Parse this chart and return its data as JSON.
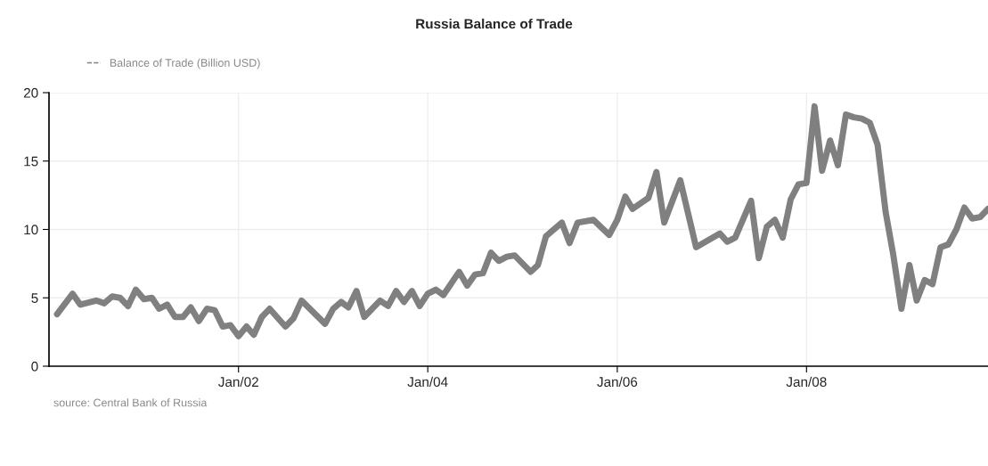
{
  "chart_data": {
    "type": "line",
    "title": "Russia Balance of Trade",
    "x": [
      "2000-02",
      "2000-04",
      "2000-05",
      "2000-07",
      "2000-08",
      "2000-09",
      "2000-10",
      "2000-11",
      "2000-12",
      "2001-01",
      "2001-02",
      "2001-03",
      "2001-04",
      "2001-05",
      "2001-06",
      "2001-07",
      "2001-08",
      "2001-09",
      "2001-10",
      "2001-11",
      "2001-12",
      "2002-01",
      "2002-02",
      "2002-03",
      "2002-04",
      "2002-05",
      "2002-07",
      "2002-08",
      "2002-09",
      "2002-12",
      "2003-01",
      "2003-02",
      "2003-03",
      "2003-04",
      "2003-05",
      "2003-07",
      "2003-08",
      "2003-09",
      "2003-10",
      "2003-11",
      "2003-12",
      "2004-01",
      "2004-02",
      "2004-03",
      "2004-05",
      "2004-06",
      "2004-07",
      "2004-08",
      "2004-09",
      "2004-10",
      "2004-11",
      "2004-12",
      "2005-02",
      "2005-03",
      "2005-04",
      "2005-06",
      "2005-07",
      "2005-08",
      "2005-10",
      "2005-12",
      "2006-01",
      "2006-02",
      "2006-03",
      "2006-05",
      "2006-06",
      "2006-07",
      "2006-09",
      "2006-11",
      "2007-02",
      "2007-03",
      "2007-04",
      "2007-06",
      "2007-07",
      "2007-08",
      "2007-09",
      "2007-10",
      "2007-11",
      "2007-12",
      "2008-01",
      "2008-02",
      "2008-03",
      "2008-04",
      "2008-05",
      "2008-06",
      "2008-07",
      "2008-08",
      "2008-09",
      "2008-10",
      "2008-11",
      "2008-12",
      "2009-01",
      "2009-02",
      "2009-03",
      "2009-04",
      "2009-05",
      "2009-06",
      "2009-07",
      "2009-08",
      "2009-09",
      "2009-10",
      "2009-11",
      "2009-12"
    ],
    "series": [
      {
        "name": "Balance of Trade (Billion USD)",
        "color": "#808080",
        "values": [
          3.8,
          5.3,
          4.5,
          4.8,
          4.6,
          5.1,
          5.0,
          4.4,
          5.6,
          4.9,
          5.0,
          4.2,
          4.5,
          3.6,
          3.6,
          4.3,
          3.3,
          4.2,
          4.1,
          2.9,
          3.0,
          2.2,
          2.9,
          2.3,
          3.6,
          4.2,
          2.9,
          3.5,
          4.8,
          3.1,
          4.2,
          4.7,
          4.3,
          5.5,
          3.6,
          4.8,
          4.4,
          5.5,
          4.7,
          5.5,
          4.4,
          5.3,
          5.6,
          5.2,
          6.9,
          5.9,
          6.7,
          6.8,
          8.3,
          7.7,
          8.0,
          8.1,
          6.9,
          7.4,
          9.5,
          10.5,
          9.0,
          10.5,
          10.7,
          9.6,
          10.7,
          12.4,
          11.5,
          12.3,
          14.2,
          10.5,
          13.6,
          8.7,
          9.7,
          9.1,
          9.4,
          12.1,
          7.9,
          10.2,
          10.7,
          9.4,
          12.2,
          13.3,
          13.4,
          19.0,
          14.3,
          16.5,
          14.7,
          18.4,
          18.2,
          18.1,
          17.8,
          16.2,
          11.3,
          8.1,
          4.2,
          7.4,
          4.8,
          6.3,
          6.0,
          8.7,
          8.9,
          10.0,
          11.6,
          10.8,
          10.9,
          11.5
        ]
      }
    ],
    "xlim": [
      "2000-01",
      "2009-12"
    ],
    "xticks": [
      {
        "value": "2002-01",
        "label": "Jan/02"
      },
      {
        "value": "2004-01",
        "label": "Jan/04"
      },
      {
        "value": "2006-01",
        "label": "Jan/06"
      },
      {
        "value": "2008-01",
        "label": "Jan/08"
      }
    ],
    "ylim": [
      0,
      20
    ],
    "yticks": [
      0,
      5,
      10,
      15,
      20
    ],
    "grid": true,
    "legend": "top left",
    "line_style": "solid",
    "annotations": [
      "source: Central Bank of Russia"
    ]
  }
}
